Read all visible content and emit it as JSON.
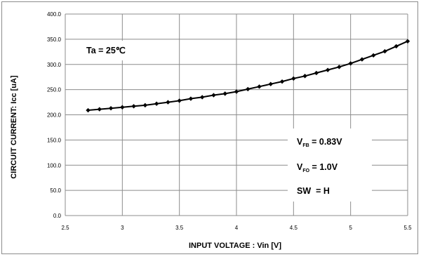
{
  "chart_data": {
    "type": "line",
    "title": "",
    "xlabel": "INPUT VOLTAGE : Vin [V]",
    "ylabel": "CIRCUIT CURRENT: Icc [uA]",
    "xlim": [
      2.5,
      5.5
    ],
    "ylim": [
      0,
      400
    ],
    "x_ticks": [
      "2.5",
      "3",
      "3.5",
      "4",
      "4.5",
      "5",
      "5.5"
    ],
    "y_ticks": [
      "0.0",
      "50.0",
      "100.0",
      "150.0",
      "200.0",
      "250.0",
      "300.0",
      "350.0",
      "400.0"
    ],
    "grid": true,
    "legend": "none",
    "marker": "diamond",
    "color": "#000000",
    "series": [
      {
        "x": [
          2.7,
          2.8,
          2.9,
          3.0,
          3.1,
          3.2,
          3.3,
          3.4,
          3.5,
          3.6,
          3.7,
          3.8,
          3.9,
          4.0,
          4.1,
          4.2,
          4.3,
          4.4,
          4.5,
          4.6,
          4.7,
          4.8,
          4.9,
          5.0,
          5.1,
          5.2,
          5.3,
          5.4,
          5.5
        ],
        "y": [
          209,
          211,
          213,
          215,
          217,
          219,
          222,
          225,
          228,
          232,
          235,
          239,
          242,
          246,
          251,
          256,
          261,
          266,
          272,
          277,
          283,
          289,
          295,
          302,
          310,
          318,
          326,
          336,
          346
        ]
      }
    ],
    "annotations": {
      "temperature": {
        "text": "Ta = 25℃"
      },
      "vfb": {
        "main": "V",
        "sub": "FB",
        "rest": " = 0.83V"
      },
      "vfo": {
        "main": "V",
        "sub": "FO",
        "rest": " = 1.0V"
      },
      "sw": {
        "text": "SW  = H"
      }
    }
  }
}
